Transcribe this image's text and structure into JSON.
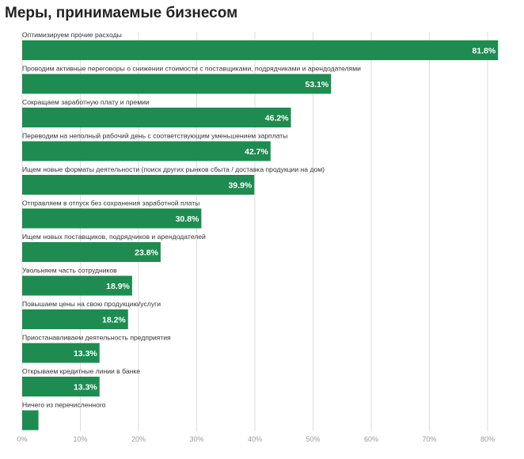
{
  "chart_data": {
    "type": "bar",
    "orientation": "horizontal",
    "title": "Меры, принимаемые бизнесом",
    "categories": [
      "Оптимизируем прочие расходы",
      "Проводим активные переговоры о снижении стоимости с поставщиками, подрядчиками и арендодателями",
      "Сокращаем заработную плату и премии",
      "Переводим на неполный рабочий день с соответствующим уменьшением зарплаты",
      "Ищем новые форматы деятельности (поиск других рынков сбыта / доставка продукции на дом)",
      "Отправляем в отпуск без сохранения заработной платы",
      "Ищем новых поставщиков, подрядчиков и арендодателей",
      "Увольняем часть сотрудников",
      "Повышаем цены на свою продукцию/услуги",
      "Приостанавливаем деятельность предприятия",
      "Открываем кредитные линии в банке",
      "Ничего из перечисленного"
    ],
    "values": [
      81.8,
      53.1,
      46.2,
      42.7,
      39.9,
      30.8,
      23.8,
      18.9,
      18.2,
      13.3,
      13.3,
      2.8
    ],
    "value_labels": [
      "81.8%",
      "53.1%",
      "46.2%",
      "42.7%",
      "39.9%",
      "30.8%",
      "23.8%",
      "18.9%",
      "18.2%",
      "13.3%",
      "13.3%",
      ""
    ],
    "xlim": [
      0,
      82
    ],
    "xticks": [
      0,
      10,
      20,
      30,
      40,
      50,
      60,
      70,
      80
    ],
    "xtick_labels": [
      "0%",
      "10%",
      "20%",
      "30%",
      "40%",
      "50%",
      "60%",
      "70%",
      "80%"
    ],
    "grid": true,
    "bar_color": "#1e8c50",
    "grid_color": "#dddddd"
  }
}
